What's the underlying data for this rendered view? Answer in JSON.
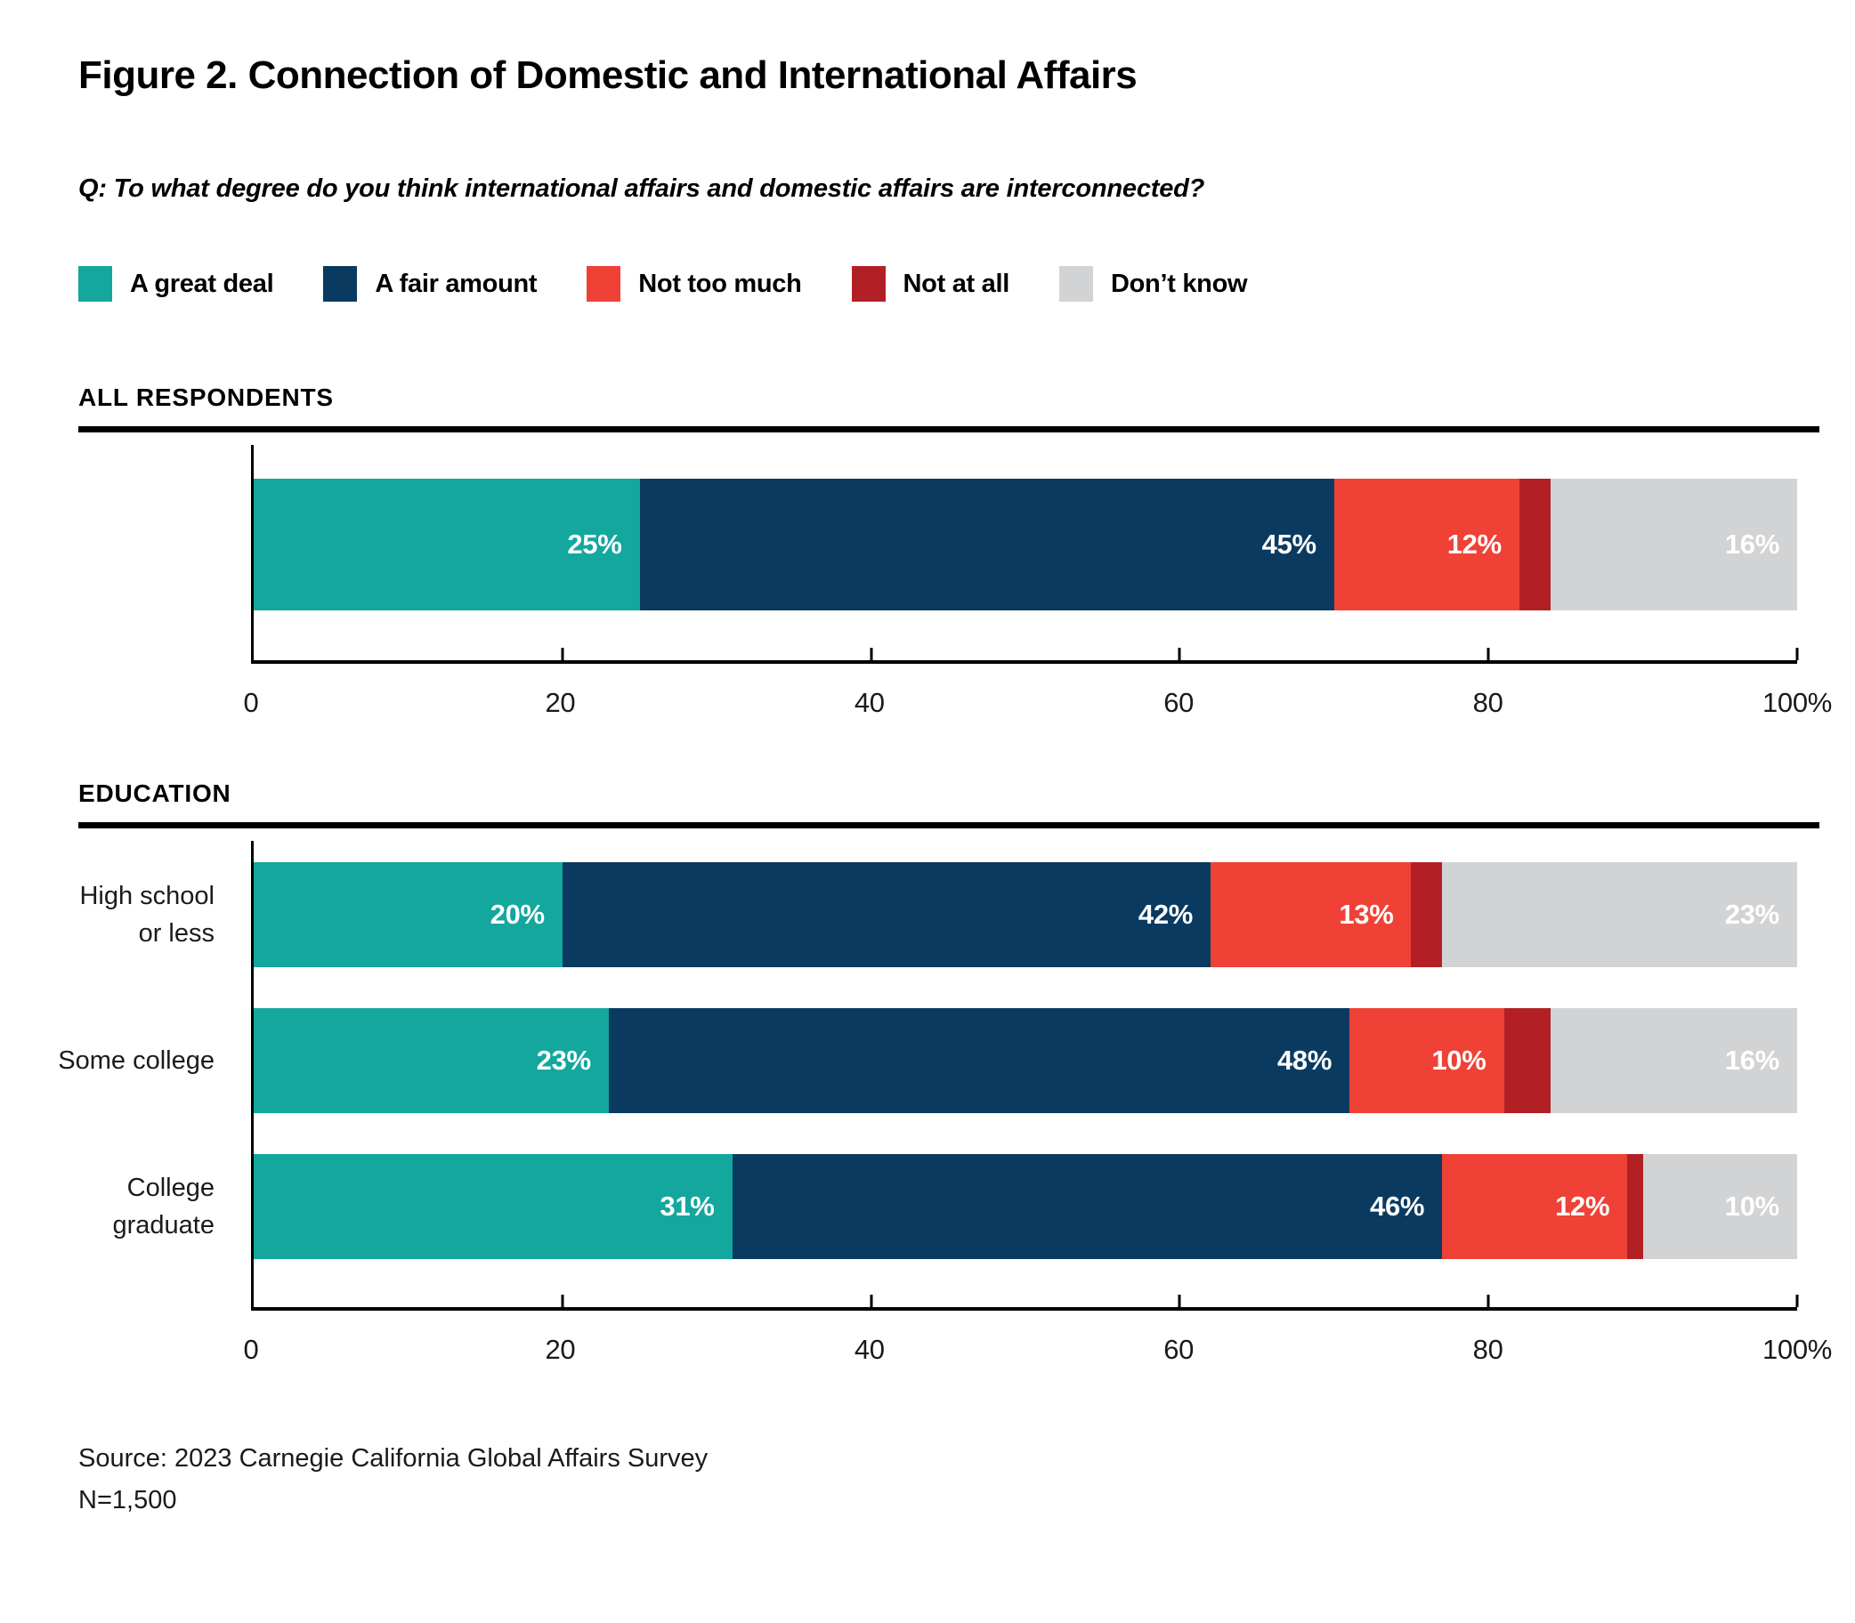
{
  "header": {
    "title": "Figure 2. Connection of Domestic and International Affairs",
    "question": "Q: To what degree do you think international affairs and domestic affairs are interconnected?"
  },
  "legend": {
    "items": [
      {
        "label": "A great deal",
        "color": "#13A79D"
      },
      {
        "label": "A fair amount",
        "color": "#0A3A60"
      },
      {
        "label": "Not too much",
        "color": "#EF4136"
      },
      {
        "label": "Not at all",
        "color": "#B22025"
      },
      {
        "label": "Don’t know",
        "color": "#D2D3D4"
      }
    ]
  },
  "chart_data": {
    "type": "bar",
    "orientation": "horizontal-stacked",
    "unit": "percent",
    "xlim": [
      0,
      100
    ],
    "x_tick_positions": [
      0,
      20,
      40,
      60,
      80,
      100
    ],
    "x_tick_labels": [
      "0",
      "20",
      "40",
      "60",
      "80",
      "100%"
    ],
    "series_names": [
      "A great deal",
      "A fair amount",
      "Not too much",
      "Not at all",
      "Don't know"
    ],
    "sections": [
      {
        "label": "ALL RESPONDENTS",
        "rows": [
          {
            "category_lines": [],
            "values": [
              25,
              45,
              12,
              2,
              16
            ],
            "value_labels": [
              "25%",
              "45%",
              "12%",
              "",
              "16%"
            ]
          }
        ]
      },
      {
        "label": "EDUCATION",
        "rows": [
          {
            "category_lines": [
              "High school",
              "or less"
            ],
            "values": [
              20,
              42,
              13,
              2,
              23
            ],
            "value_labels": [
              "20%",
              "42%",
              "13%",
              "",
              "23%"
            ]
          },
          {
            "category_lines": [
              "Some college"
            ],
            "values": [
              23,
              48,
              10,
              3,
              16
            ],
            "value_labels": [
              "23%",
              "48%",
              "10%",
              "",
              "16%"
            ]
          },
          {
            "category_lines": [
              "College",
              "graduate"
            ],
            "values": [
              31,
              46,
              12,
              1,
              10
            ],
            "value_labels": [
              "31%",
              "46%",
              "12%",
              "",
              "10%"
            ]
          }
        ]
      }
    ]
  },
  "footer": {
    "source": "Source: 2023 Carnegie California Global Affairs Survey",
    "n": "N=1,500"
  }
}
